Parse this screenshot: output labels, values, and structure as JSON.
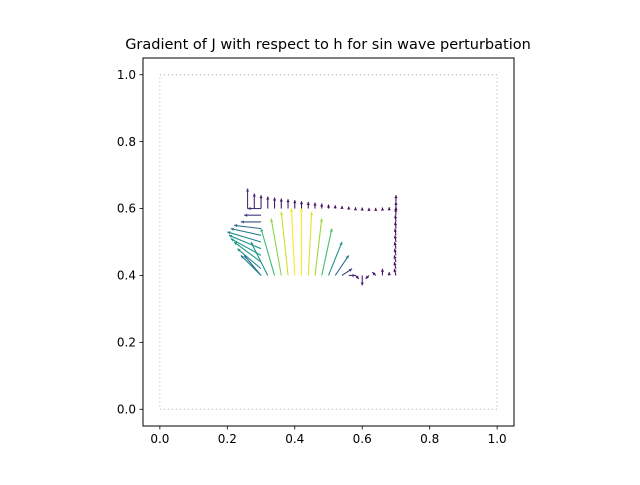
{
  "chart_data": {
    "type": "quiver",
    "title": "Gradient of J with respect to h for sin wave perturbation",
    "xlabel": "",
    "ylabel": "",
    "xlim": [
      -0.05,
      1.05
    ],
    "ylim": [
      -0.05,
      1.05
    ],
    "x_ticks": [
      0.0,
      0.2,
      0.4,
      0.6,
      0.8,
      1.0
    ],
    "y_ticks": [
      0.0,
      0.2,
      0.4,
      0.6,
      0.8,
      1.0
    ],
    "x_tick_labels": [
      "0.0",
      "0.2",
      "0.4",
      "0.6",
      "0.8",
      "1.0"
    ],
    "y_tick_labels": [
      "0.0",
      "0.2",
      "0.4",
      "0.6",
      "0.8",
      "1.0"
    ],
    "grid": false,
    "legend": "none",
    "colormap": "viridis",
    "domain_outline": {
      "style": "dotted",
      "color": "#aaaaaa",
      "corners": [
        [
          0,
          0
        ],
        [
          1,
          0
        ],
        [
          1,
          1
        ],
        [
          0,
          1
        ]
      ]
    },
    "arrow_series": [
      {
        "segment": "bottom boundary y=0.4, x from 0.3 to 0.7",
        "x": [
          0.3,
          0.32,
          0.34,
          0.36,
          0.38,
          0.4,
          0.42,
          0.44,
          0.46,
          0.48,
          0.5,
          0.52,
          0.54,
          0.56,
          0.58,
          0.6,
          0.62,
          0.64,
          0.66,
          0.68,
          0.7
        ],
        "y": [
          0.4,
          0.4,
          0.4,
          0.4,
          0.4,
          0.4,
          0.4,
          0.4,
          0.4,
          0.4,
          0.4,
          0.4,
          0.4,
          0.4,
          0.4,
          0.4,
          0.4,
          0.4,
          0.4,
          0.4,
          0.4
        ],
        "u": [
          -0.05,
          -0.05,
          -0.04,
          -0.03,
          -0.02,
          -0.01,
          0.0,
          0.01,
          0.02,
          0.03,
          0.04,
          0.04,
          0.03,
          0.02,
          0.01,
          0.0,
          -0.01,
          -0.01,
          0.0,
          0.0,
          0.0
        ],
        "v": [
          0.06,
          0.1,
          0.14,
          0.17,
          0.19,
          0.2,
          0.2,
          0.19,
          0.17,
          0.14,
          0.1,
          0.06,
          0.02,
          0.0,
          -0.01,
          -0.03,
          -0.01,
          0.01,
          0.02,
          0.01,
          0.0
        ],
        "magnitude": [
          0.3,
          0.5,
          0.68,
          0.82,
          0.93,
          1.0,
          1.0,
          0.95,
          0.85,
          0.7,
          0.52,
          0.36,
          0.2,
          0.12,
          0.08,
          0.1,
          0.06,
          0.05,
          0.06,
          0.05,
          0.04
        ]
      },
      {
        "segment": "right boundary x=0.7, y from 0.4 to 0.63",
        "x": [
          0.7,
          0.7,
          0.7,
          0.7,
          0.7,
          0.7,
          0.7,
          0.7,
          0.7,
          0.7,
          0.7,
          0.7
        ],
        "y": [
          0.4,
          0.42,
          0.44,
          0.46,
          0.48,
          0.5,
          0.52,
          0.54,
          0.56,
          0.58,
          0.6,
          0.62
        ],
        "u": [
          -0.005,
          -0.005,
          -0.005,
          -0.004,
          -0.004,
          -0.003,
          -0.003,
          -0.002,
          -0.002,
          -0.001,
          0.0,
          0.0
        ],
        "v": [
          0.02,
          0.02,
          0.02,
          0.02,
          0.02,
          0.02,
          0.02,
          0.02,
          0.02,
          0.02,
          0.02,
          0.02
        ],
        "magnitude": [
          0.04,
          0.04,
          0.04,
          0.04,
          0.04,
          0.04,
          0.04,
          0.04,
          0.04,
          0.04,
          0.04,
          0.04
        ]
      },
      {
        "segment": "top boundary y=0.6, x from 0.26 to 0.7",
        "x": [
          0.26,
          0.28,
          0.3,
          0.32,
          0.34,
          0.36,
          0.38,
          0.4,
          0.42,
          0.44,
          0.46,
          0.48,
          0.5,
          0.52,
          0.54,
          0.56,
          0.58,
          0.6,
          0.62,
          0.64,
          0.66,
          0.68,
          0.7
        ],
        "y": [
          0.6,
          0.6,
          0.6,
          0.6,
          0.6,
          0.6,
          0.6,
          0.6,
          0.6,
          0.6,
          0.6,
          0.6,
          0.6,
          0.6,
          0.6,
          0.6,
          0.6,
          0.6,
          0.6,
          0.6,
          0.6,
          0.6,
          0.6
        ],
        "u": [
          0.0,
          0.0,
          0.0,
          0.0,
          0.0,
          0.0,
          0.0,
          0.0,
          0.0,
          0.0,
          0.0,
          0.0,
          0.0,
          0.0,
          0.0,
          0.0,
          0.0,
          0.0,
          0.0,
          0.0,
          0.0,
          0.0,
          0.0
        ],
        "v": [
          0.06,
          0.045,
          0.04,
          0.036,
          0.033,
          0.03,
          0.028,
          0.025,
          0.022,
          0.02,
          0.018,
          0.015,
          0.012,
          0.01,
          0.008,
          0.006,
          0.004,
          0.003,
          0.002,
          0.002,
          0.003,
          0.004,
          0.005
        ],
        "magnitude": [
          0.15,
          0.1,
          0.08,
          0.07,
          0.07,
          0.06,
          0.06,
          0.06,
          0.05,
          0.05,
          0.05,
          0.05,
          0.04,
          0.04,
          0.04,
          0.04,
          0.03,
          0.03,
          0.03,
          0.03,
          0.03,
          0.03,
          0.03
        ]
      },
      {
        "segment": "left boundary x=0.3, y from 0.4 to 0.6",
        "x": [
          0.3,
          0.3,
          0.3,
          0.3,
          0.3,
          0.3,
          0.3,
          0.3,
          0.3,
          0.3,
          0.3
        ],
        "y": [
          0.4,
          0.42,
          0.44,
          0.46,
          0.48,
          0.5,
          0.52,
          0.54,
          0.56,
          0.58,
          0.6
        ],
        "u": [
          -0.06,
          -0.07,
          -0.08,
          -0.09,
          -0.095,
          -0.1,
          -0.09,
          -0.08,
          -0.06,
          -0.05,
          -0.04
        ],
        "v": [
          0.06,
          0.06,
          0.06,
          0.05,
          0.04,
          0.03,
          0.02,
          0.01,
          0.0,
          0.0,
          0.0
        ],
        "magnitude": [
          0.45,
          0.5,
          0.55,
          0.55,
          0.52,
          0.48,
          0.42,
          0.35,
          0.25,
          0.18,
          0.15
        ]
      }
    ]
  }
}
